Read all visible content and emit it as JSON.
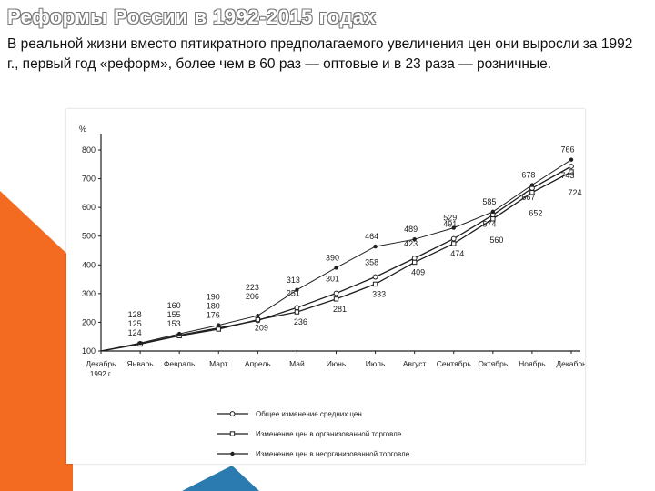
{
  "slide": {
    "title": "Реформы России в 1992-2015 годах",
    "text": "В реальной жизни вместо пятикратного предполагаемого увеличения цен они выросли за 1992 г., первый год «реформ», более чем в 60 раз — оптовые и в 23 раза — розничные."
  },
  "colors": {
    "accent_orange": "#f26b21",
    "accent_blue": "#2b7bb0",
    "line": "#1f1f1f"
  },
  "chart_data": {
    "type": "line",
    "ylabel": "%",
    "ylim": [
      100,
      800
    ],
    "yticks": [
      100,
      200,
      300,
      400,
      500,
      600,
      700,
      800
    ],
    "categories": [
      "Декабрь",
      "Январь",
      "Февраль",
      "Март",
      "Апрель",
      "Май",
      "Июнь",
      "Июль",
      "Август",
      "Сентябрь",
      "Октябрь",
      "Ноябрь",
      "Декабрь"
    ],
    "first_category_note": "1992 г.",
    "legend_position": "bottom",
    "series": [
      {
        "name": "Общее изменение средних цен",
        "values": [
          100,
          125,
          155,
          180,
          206,
          251,
          301,
          358,
          423,
          491,
          574,
          667,
          743
        ],
        "labels": [
          null,
          "125",
          "155",
          "180",
          "206",
          "251",
          "301",
          "358",
          "423",
          "491",
          "574",
          "667",
          "743"
        ],
        "marker": "circle-open"
      },
      {
        "name": "Изменение цен в организованной торговле",
        "values": [
          100,
          124,
          153,
          176,
          209,
          236,
          281,
          333,
          409,
          474,
          560,
          652,
          724
        ],
        "labels": [
          null,
          "124",
          "153",
          "176",
          "209",
          "236",
          "281",
          "333",
          "409",
          "474",
          "560",
          "652",
          "724"
        ],
        "marker": "square-open"
      },
      {
        "name": "Изменение цен в неорганизованной торговле",
        "values": [
          100,
          128,
          160,
          190,
          223,
          313,
          390,
          464,
          489,
          529,
          585,
          678,
          766
        ],
        "labels": [
          null,
          "128",
          "160",
          "190",
          "223",
          "313",
          "390",
          "464",
          "489",
          "529",
          "585",
          "678",
          "766"
        ],
        "marker": "dot-filled"
      }
    ]
  }
}
